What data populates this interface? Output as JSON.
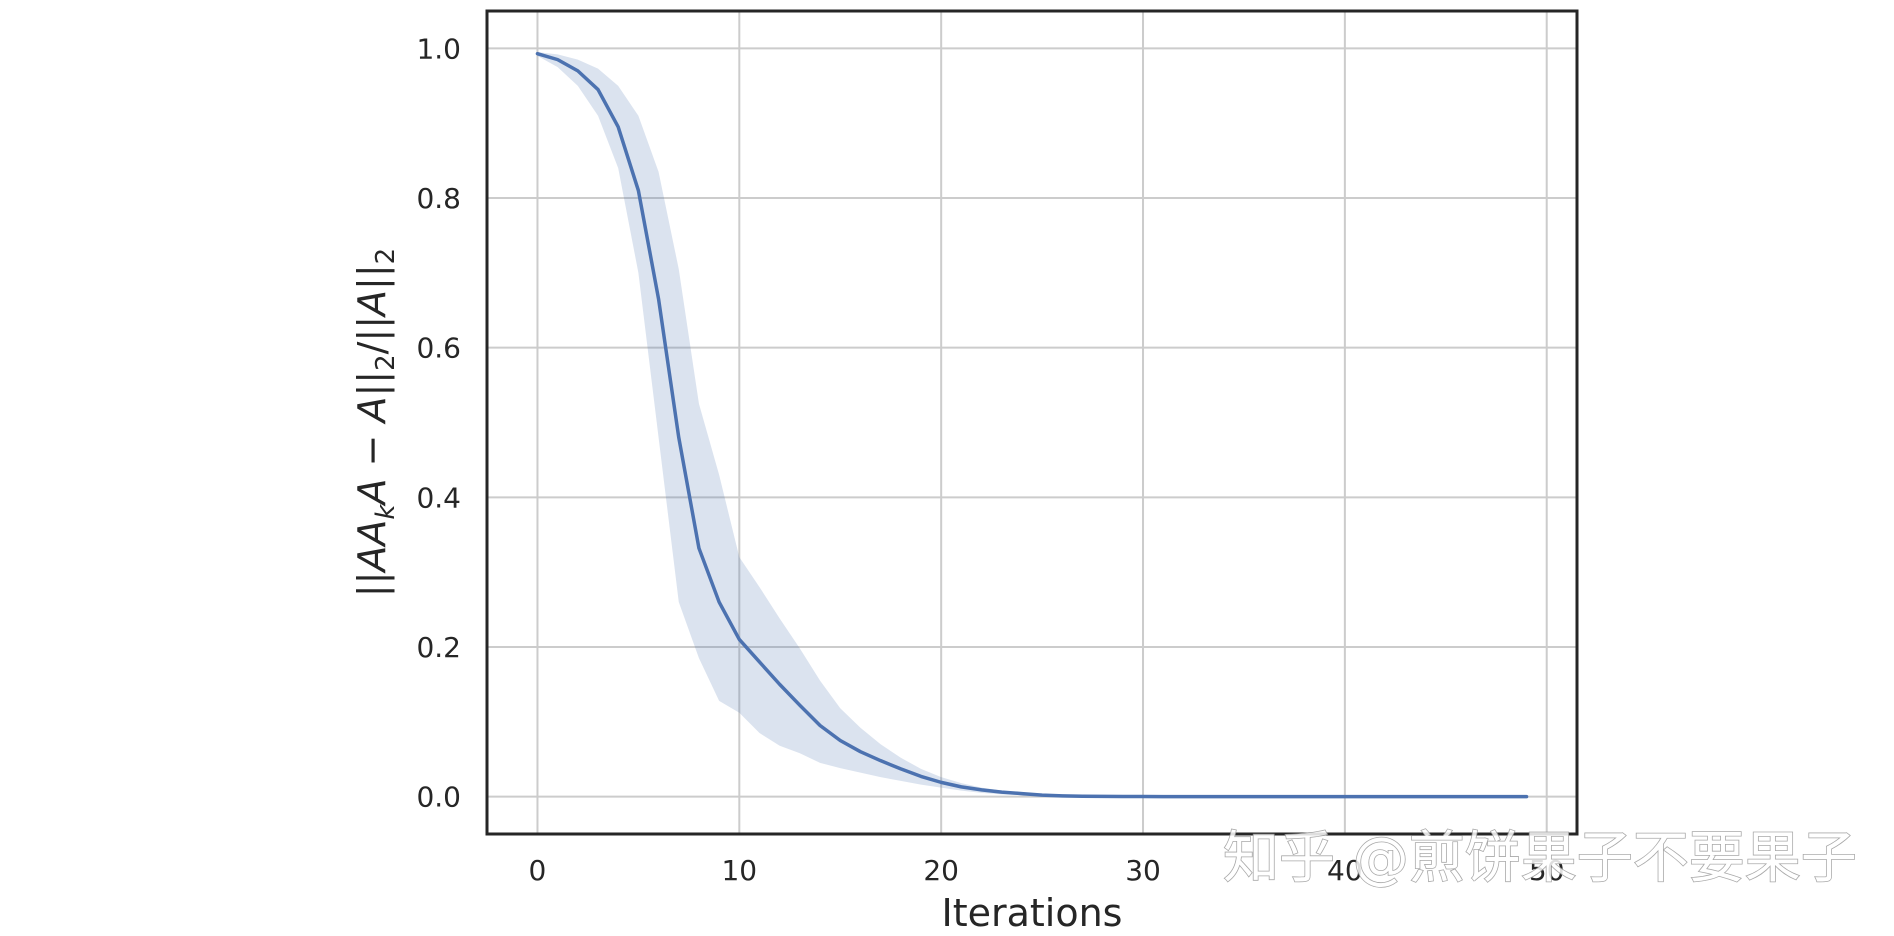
{
  "chart_data": {
    "type": "line",
    "title": "",
    "xlabel": "Iterations",
    "ylabel_parts": [
      "||",
      "AA",
      "k",
      "A",
      " − ",
      "A",
      "||",
      "2",
      "/||",
      "A",
      "||",
      "2"
    ],
    "xlim": [
      -2.5,
      51.5
    ],
    "ylim": [
      -0.05,
      1.05
    ],
    "xticks": [
      0,
      10,
      20,
      30,
      40,
      50
    ],
    "xtick_labels": [
      "0",
      "10",
      "20",
      "30",
      "40",
      "50"
    ],
    "yticks": [
      0.0,
      0.2,
      0.4,
      0.6,
      0.8,
      1.0
    ],
    "ytick_labels": [
      "0.0",
      "0.2",
      "0.4",
      "0.6",
      "0.8",
      "1.0"
    ],
    "grid": true,
    "legend": false,
    "colors": {
      "line": "#4c72b0",
      "band": "#4c72b0",
      "grid": "#cccccc",
      "frame": "#262626",
      "text": "#262626"
    },
    "series": [
      {
        "x": [
          0,
          1,
          2,
          3,
          4,
          5,
          6,
          7,
          8,
          9,
          10,
          11,
          12,
          13,
          14,
          15,
          16,
          17,
          18,
          19,
          20,
          21,
          22,
          23,
          24,
          25,
          26,
          27,
          28,
          29,
          30,
          31,
          32,
          33,
          34,
          35,
          36,
          37,
          38,
          39,
          40,
          41,
          42,
          43,
          44,
          45,
          46,
          47,
          48,
          49
        ],
        "y": [
          0.993,
          0.985,
          0.97,
          0.945,
          0.895,
          0.81,
          0.665,
          0.48,
          0.332,
          0.26,
          0.21,
          0.18,
          0.15,
          0.122,
          0.095,
          0.075,
          0.06,
          0.048,
          0.037,
          0.027,
          0.019,
          0.013,
          0.009,
          0.006,
          0.004,
          0.002,
          0.001,
          0.0005,
          0.0003,
          0.0002,
          0.0001,
          0.0,
          0.0,
          0.0,
          0.0,
          0.0,
          0.0,
          0.0,
          0.0,
          0.0,
          0.0,
          0.0,
          0.0,
          0.0,
          0.0,
          0.0,
          0.0,
          0.0,
          0.0,
          0.0
        ],
        "y_lower": [
          0.99,
          0.975,
          0.95,
          0.91,
          0.84,
          0.7,
          0.48,
          0.26,
          0.185,
          0.128,
          0.112,
          0.085,
          0.068,
          0.058,
          0.045,
          0.038,
          0.032,
          0.026,
          0.021,
          0.016,
          0.012,
          0.008,
          0.005,
          0.003,
          0.002,
          0.001,
          0.0005,
          0.0002,
          0.0,
          0.0,
          0.0,
          0.0,
          0.0,
          0.0,
          0.0,
          0.0,
          0.0,
          0.0,
          0.0,
          0.0,
          0.0,
          0.0,
          0.0,
          0.0,
          0.0,
          0.0,
          0.0,
          0.0,
          0.0,
          0.0
        ],
        "y_upper": [
          0.995,
          0.992,
          0.985,
          0.973,
          0.95,
          0.91,
          0.835,
          0.705,
          0.525,
          0.43,
          0.32,
          0.28,
          0.238,
          0.198,
          0.155,
          0.118,
          0.092,
          0.07,
          0.052,
          0.037,
          0.026,
          0.018,
          0.012,
          0.008,
          0.005,
          0.003,
          0.0015,
          0.0008,
          0.0005,
          0.0003,
          0.0002,
          0.0,
          0.0,
          0.0,
          0.0,
          0.0,
          0.0,
          0.0,
          0.0,
          0.0,
          0.0,
          0.0,
          0.0,
          0.0,
          0.0,
          0.0,
          0.0,
          0.0,
          0.0,
          0.0
        ]
      }
    ]
  },
  "watermark": {
    "text": "知乎 @煎饼果子不要果子"
  }
}
